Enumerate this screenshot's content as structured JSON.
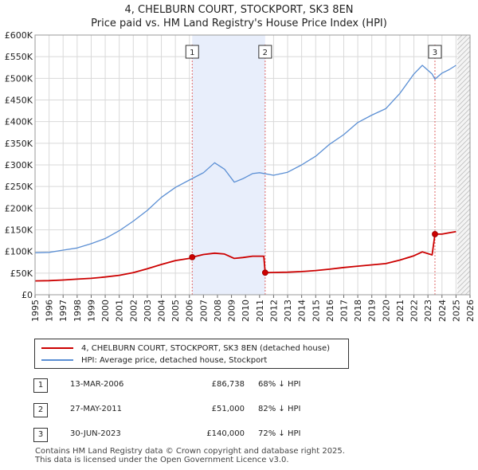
{
  "title_line1": "4, CHELBURN COURT, STOCKPORT, SK3 8EN",
  "title_line2": "Price paid vs. HM Land Registry's House Price Index (HPI)",
  "legend": {
    "property": "4, CHELBURN COURT, STOCKPORT, SK3 8EN (detached house)",
    "hpi": "HPI: Average price, detached house, Stockport"
  },
  "sales": [
    {
      "num": "1",
      "date": "13-MAR-2006",
      "price": "£86,738",
      "hpi": "68% ↓ HPI"
    },
    {
      "num": "2",
      "date": "27-MAY-2011",
      "price": "£51,000",
      "hpi": "82% ↓ HPI"
    },
    {
      "num": "3",
      "date": "30-JUN-2023",
      "price": "£140,000",
      "hpi": "72% ↓ HPI"
    }
  ],
  "footer_line1": "Contains HM Land Registry data © Crown copyright and database right 2025.",
  "footer_line2": "This data is licensed under the Open Government Licence v3.0.",
  "colors": {
    "property": "#cc0000",
    "hpi": "#5b8fd4",
    "shade": "#e8eefb",
    "grid": "#d9d9d9"
  },
  "chart_data": {
    "type": "line",
    "title": "Price paid vs. HM Land Registry's House Price Index (HPI)",
    "xlim": [
      1995,
      2026
    ],
    "ylim": [
      0,
      600000
    ],
    "yticks": [
      0,
      50000,
      100000,
      150000,
      200000,
      250000,
      300000,
      350000,
      400000,
      450000,
      500000,
      550000,
      600000
    ],
    "ytick_labels": [
      "£0",
      "£50K",
      "£100K",
      "£150K",
      "£200K",
      "£250K",
      "£300K",
      "£350K",
      "£400K",
      "£450K",
      "£500K",
      "£550K",
      "£600K"
    ],
    "xticks": [
      1995,
      1996,
      1997,
      1998,
      1999,
      2000,
      2001,
      2002,
      2003,
      2004,
      2005,
      2006,
      2007,
      2008,
      2009,
      2010,
      2011,
      2012,
      2013,
      2014,
      2015,
      2016,
      2017,
      2018,
      2019,
      2020,
      2021,
      2022,
      2023,
      2024,
      2025,
      2026
    ],
    "shaded_periods": [
      [
        2006.2,
        2011.4
      ]
    ],
    "hatched_from": 2025.1,
    "sale_markers": [
      {
        "label": "1",
        "x": 2006.2,
        "y": 86738
      },
      {
        "label": "2",
        "x": 2011.4,
        "y": 51000
      },
      {
        "label": "3",
        "x": 2023.5,
        "y": 140000
      }
    ],
    "series": [
      {
        "name": "4, CHELBURN COURT, STOCKPORT, SK3 8EN (detached house)",
        "points": [
          [
            1995.0,
            32000
          ],
          [
            1996.0,
            32500
          ],
          [
            1997.0,
            34000
          ],
          [
            1998.0,
            36000
          ],
          [
            1999.0,
            38000
          ],
          [
            2000.0,
            41000
          ],
          [
            2001.0,
            45000
          ],
          [
            2002.0,
            51000
          ],
          [
            2003.0,
            60000
          ],
          [
            2004.0,
            70000
          ],
          [
            2005.0,
            79000
          ],
          [
            2006.0,
            84000
          ],
          [
            2006.2,
            86738
          ],
          [
            2007.0,
            93000
          ],
          [
            2007.8,
            96000
          ],
          [
            2008.5,
            94000
          ],
          [
            2009.2,
            84000
          ],
          [
            2009.8,
            86000
          ],
          [
            2010.5,
            89000
          ],
          [
            2011.3,
            89000
          ],
          [
            2011.4,
            51000
          ],
          [
            2012.0,
            51500
          ],
          [
            2013.0,
            52000
          ],
          [
            2014.0,
            53500
          ],
          [
            2015.0,
            56000
          ],
          [
            2016.0,
            59000
          ],
          [
            2017.0,
            63000
          ],
          [
            2018.0,
            66000
          ],
          [
            2019.0,
            69000
          ],
          [
            2020.0,
            72000
          ],
          [
            2021.0,
            80000
          ],
          [
            2022.0,
            90000
          ],
          [
            2022.6,
            99000
          ],
          [
            2023.3,
            92000
          ],
          [
            2023.5,
            140000
          ],
          [
            2024.0,
            140000
          ],
          [
            2024.5,
            143000
          ],
          [
            2025.0,
            146000
          ]
        ]
      },
      {
        "name": "HPI: Average price, detached house, Stockport",
        "points": [
          [
            1995.0,
            97000
          ],
          [
            1996.0,
            98000
          ],
          [
            1997.0,
            103000
          ],
          [
            1998.0,
            108000
          ],
          [
            1999.0,
            118000
          ],
          [
            2000.0,
            130000
          ],
          [
            2001.0,
            148000
          ],
          [
            2002.0,
            170000
          ],
          [
            2003.0,
            195000
          ],
          [
            2004.0,
            225000
          ],
          [
            2005.0,
            248000
          ],
          [
            2006.0,
            265000
          ],
          [
            2007.0,
            282000
          ],
          [
            2007.8,
            305000
          ],
          [
            2008.5,
            290000
          ],
          [
            2009.2,
            260000
          ],
          [
            2009.8,
            268000
          ],
          [
            2010.5,
            280000
          ],
          [
            2011.0,
            282000
          ],
          [
            2012.0,
            276000
          ],
          [
            2013.0,
            283000
          ],
          [
            2014.0,
            300000
          ],
          [
            2015.0,
            320000
          ],
          [
            2016.0,
            348000
          ],
          [
            2017.0,
            370000
          ],
          [
            2018.0,
            398000
          ],
          [
            2019.0,
            415000
          ],
          [
            2020.0,
            430000
          ],
          [
            2021.0,
            465000
          ],
          [
            2022.0,
            510000
          ],
          [
            2022.6,
            530000
          ],
          [
            2023.3,
            510000
          ],
          [
            2023.5,
            498000
          ],
          [
            2024.0,
            512000
          ],
          [
            2024.5,
            520000
          ],
          [
            2025.0,
            530000
          ]
        ]
      }
    ]
  }
}
